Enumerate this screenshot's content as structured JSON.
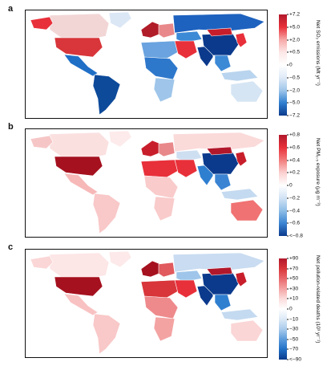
{
  "panels": [
    {
      "letter": "a",
      "cbar": {
        "label": "Net SO₂ emissions (Mt yr⁻¹)",
        "ticks": [
          "+7.2",
          "+5.0",
          "+2.0",
          "+0.5",
          "0",
          "−0.5",
          "−2.0",
          "−5.0",
          "−7.2"
        ],
        "colors": [
          "#b2182b",
          "#e8303a",
          "#f7a8a8",
          "#fde7e7",
          "#ffffff",
          "#dfeaf7",
          "#9fc6ea",
          "#2f7fd0",
          "#0b3a8c"
        ]
      },
      "regions": [
        {
          "name": "Canada",
          "color": "#f2d6d6"
        },
        {
          "name": "Alaska",
          "color": "#e8303a"
        },
        {
          "name": "Greenland",
          "color": "#dbe7f5"
        },
        {
          "name": "USA",
          "color": "#d8363a"
        },
        {
          "name": "Mexico & Central America",
          "color": "#1f6fc6"
        },
        {
          "name": "South America",
          "color": "#0d4a9a"
        },
        {
          "name": "Western Europe",
          "color": "#b01c28"
        },
        {
          "name": "Eastern Europe",
          "color": "#e8888a"
        },
        {
          "name": "Russia & Central Asia",
          "color": "#1e62bf"
        },
        {
          "name": "Kazakhstan",
          "color": "#3c89d6"
        },
        {
          "name": "North Africa",
          "color": "#6aa3df"
        },
        {
          "name": "Middle East",
          "color": "#e8303a"
        },
        {
          "name": "Sub-Saharan Africa",
          "color": "#2e78cc"
        },
        {
          "name": "Southern Africa",
          "color": "#9fc6ea"
        },
        {
          "name": "India",
          "color": "#0b3a8c"
        },
        {
          "name": "China",
          "color": "#0b3a8c"
        },
        {
          "name": "Mongolia",
          "color": "#c81e2b"
        },
        {
          "name": "Japan & Korea",
          "color": "#e8303a"
        },
        {
          "name": "Southeast Asia",
          "color": "#3c89d6"
        },
        {
          "name": "Indonesia & Pacific",
          "color": "#b9d4ee"
        },
        {
          "name": "Australia",
          "color": "#d6e5f4"
        }
      ]
    },
    {
      "letter": "b",
      "cbar": {
        "label": "Net PM₂.₅ exposure (μg m⁻³)",
        "ticks": [
          "+0.8",
          "+0.6",
          "+0.4",
          "+0.2",
          "0",
          "−0.2",
          "−0.4",
          "−0.6",
          "<−0.8"
        ],
        "colors": [
          "#b2182b",
          "#e8303a",
          "#f27c7c",
          "#fbd0d0",
          "#ffffff",
          "#d2e3f5",
          "#8ebde6",
          "#3a84d3",
          "#0b3a8c"
        ]
      },
      "regions": [
        {
          "name": "Canada",
          "color": "#fbe0e0"
        },
        {
          "name": "Alaska",
          "color": "#f6c6c6"
        },
        {
          "name": "Greenland",
          "color": "#fdeaea"
        },
        {
          "name": "USA",
          "color": "#a5111f"
        },
        {
          "name": "Mexico & Central America",
          "color": "#f7b8b8"
        },
        {
          "name": "South America",
          "color": "#f9c8c8"
        },
        {
          "name": "Western Europe",
          "color": "#c81e2b"
        },
        {
          "name": "Eastern Europe",
          "color": "#e8888a"
        },
        {
          "name": "Russia & Central Asia",
          "color": "#fbdada"
        },
        {
          "name": "Kazakhstan",
          "color": "#cfdff2"
        },
        {
          "name": "North Africa",
          "color": "#e8303a"
        },
        {
          "name": "Middle East",
          "color": "#e8303a"
        },
        {
          "name": "Sub-Saharan Africa",
          "color": "#f9cbcb"
        },
        {
          "name": "Southern Africa",
          "color": "#f9cbcb"
        },
        {
          "name": "India",
          "color": "#2f7fd0"
        },
        {
          "name": "China",
          "color": "#0b3a8c"
        },
        {
          "name": "Mongolia",
          "color": "#b2182b"
        },
        {
          "name": "Japan & Korea",
          "color": "#c81e2b"
        },
        {
          "name": "Southeast Asia",
          "color": "#3a84d3"
        },
        {
          "name": "Indonesia & Pacific",
          "color": "#c4daf0"
        },
        {
          "name": "Australia",
          "color": "#f07272"
        }
      ]
    },
    {
      "letter": "c",
      "cbar": {
        "label": "Net pollution-related deaths (10³ yr⁻¹)",
        "ticks": [
          "+90",
          "+70",
          "+50",
          "+30",
          "+10",
          "0",
          "−10",
          "−30",
          "−50",
          "−70",
          "<−90"
        ],
        "colors": [
          "#b2182b",
          "#d8363a",
          "#e8686c",
          "#f4a3a3",
          "#fbdcdc",
          "#ffffff",
          "#dce9f6",
          "#a9cbec",
          "#5b9bdc",
          "#1f6fc6",
          "#0b3a8c"
        ]
      },
      "regions": [
        {
          "name": "Canada",
          "color": "#fde6e6"
        },
        {
          "name": "Alaska",
          "color": "#fbd6d6"
        },
        {
          "name": "Greenland",
          "color": "#fde9e9"
        },
        {
          "name": "USA",
          "color": "#a5111f"
        },
        {
          "name": "Mexico & Central America",
          "color": "#f9c2c2"
        },
        {
          "name": "South America",
          "color": "#f9c8c8"
        },
        {
          "name": "Western Europe",
          "color": "#a5111f"
        },
        {
          "name": "Eastern Europe",
          "color": "#e05a5e"
        },
        {
          "name": "Russia & Central Asia",
          "color": "#c9dcf1"
        },
        {
          "name": "Kazakhstan",
          "color": "#9fc6ea"
        },
        {
          "name": "North Africa",
          "color": "#d8363a"
        },
        {
          "name": "Middle East",
          "color": "#e8303a"
        },
        {
          "name": "Sub-Saharan Africa",
          "color": "#ee8a8c"
        },
        {
          "name": "Southern Africa",
          "color": "#f4a3a3"
        },
        {
          "name": "India",
          "color": "#0b3a8c"
        },
        {
          "name": "China",
          "color": "#0b3a8c"
        },
        {
          "name": "Mongolia",
          "color": "#b2182b"
        },
        {
          "name": "Japan & Korea",
          "color": "#c81e2b"
        },
        {
          "name": "Southeast Asia",
          "color": "#2f7fd0"
        },
        {
          "name": "Indonesia & Pacific",
          "color": "#c4daf0"
        },
        {
          "name": "Australia",
          "color": "#fbd6d6"
        }
      ]
    }
  ]
}
